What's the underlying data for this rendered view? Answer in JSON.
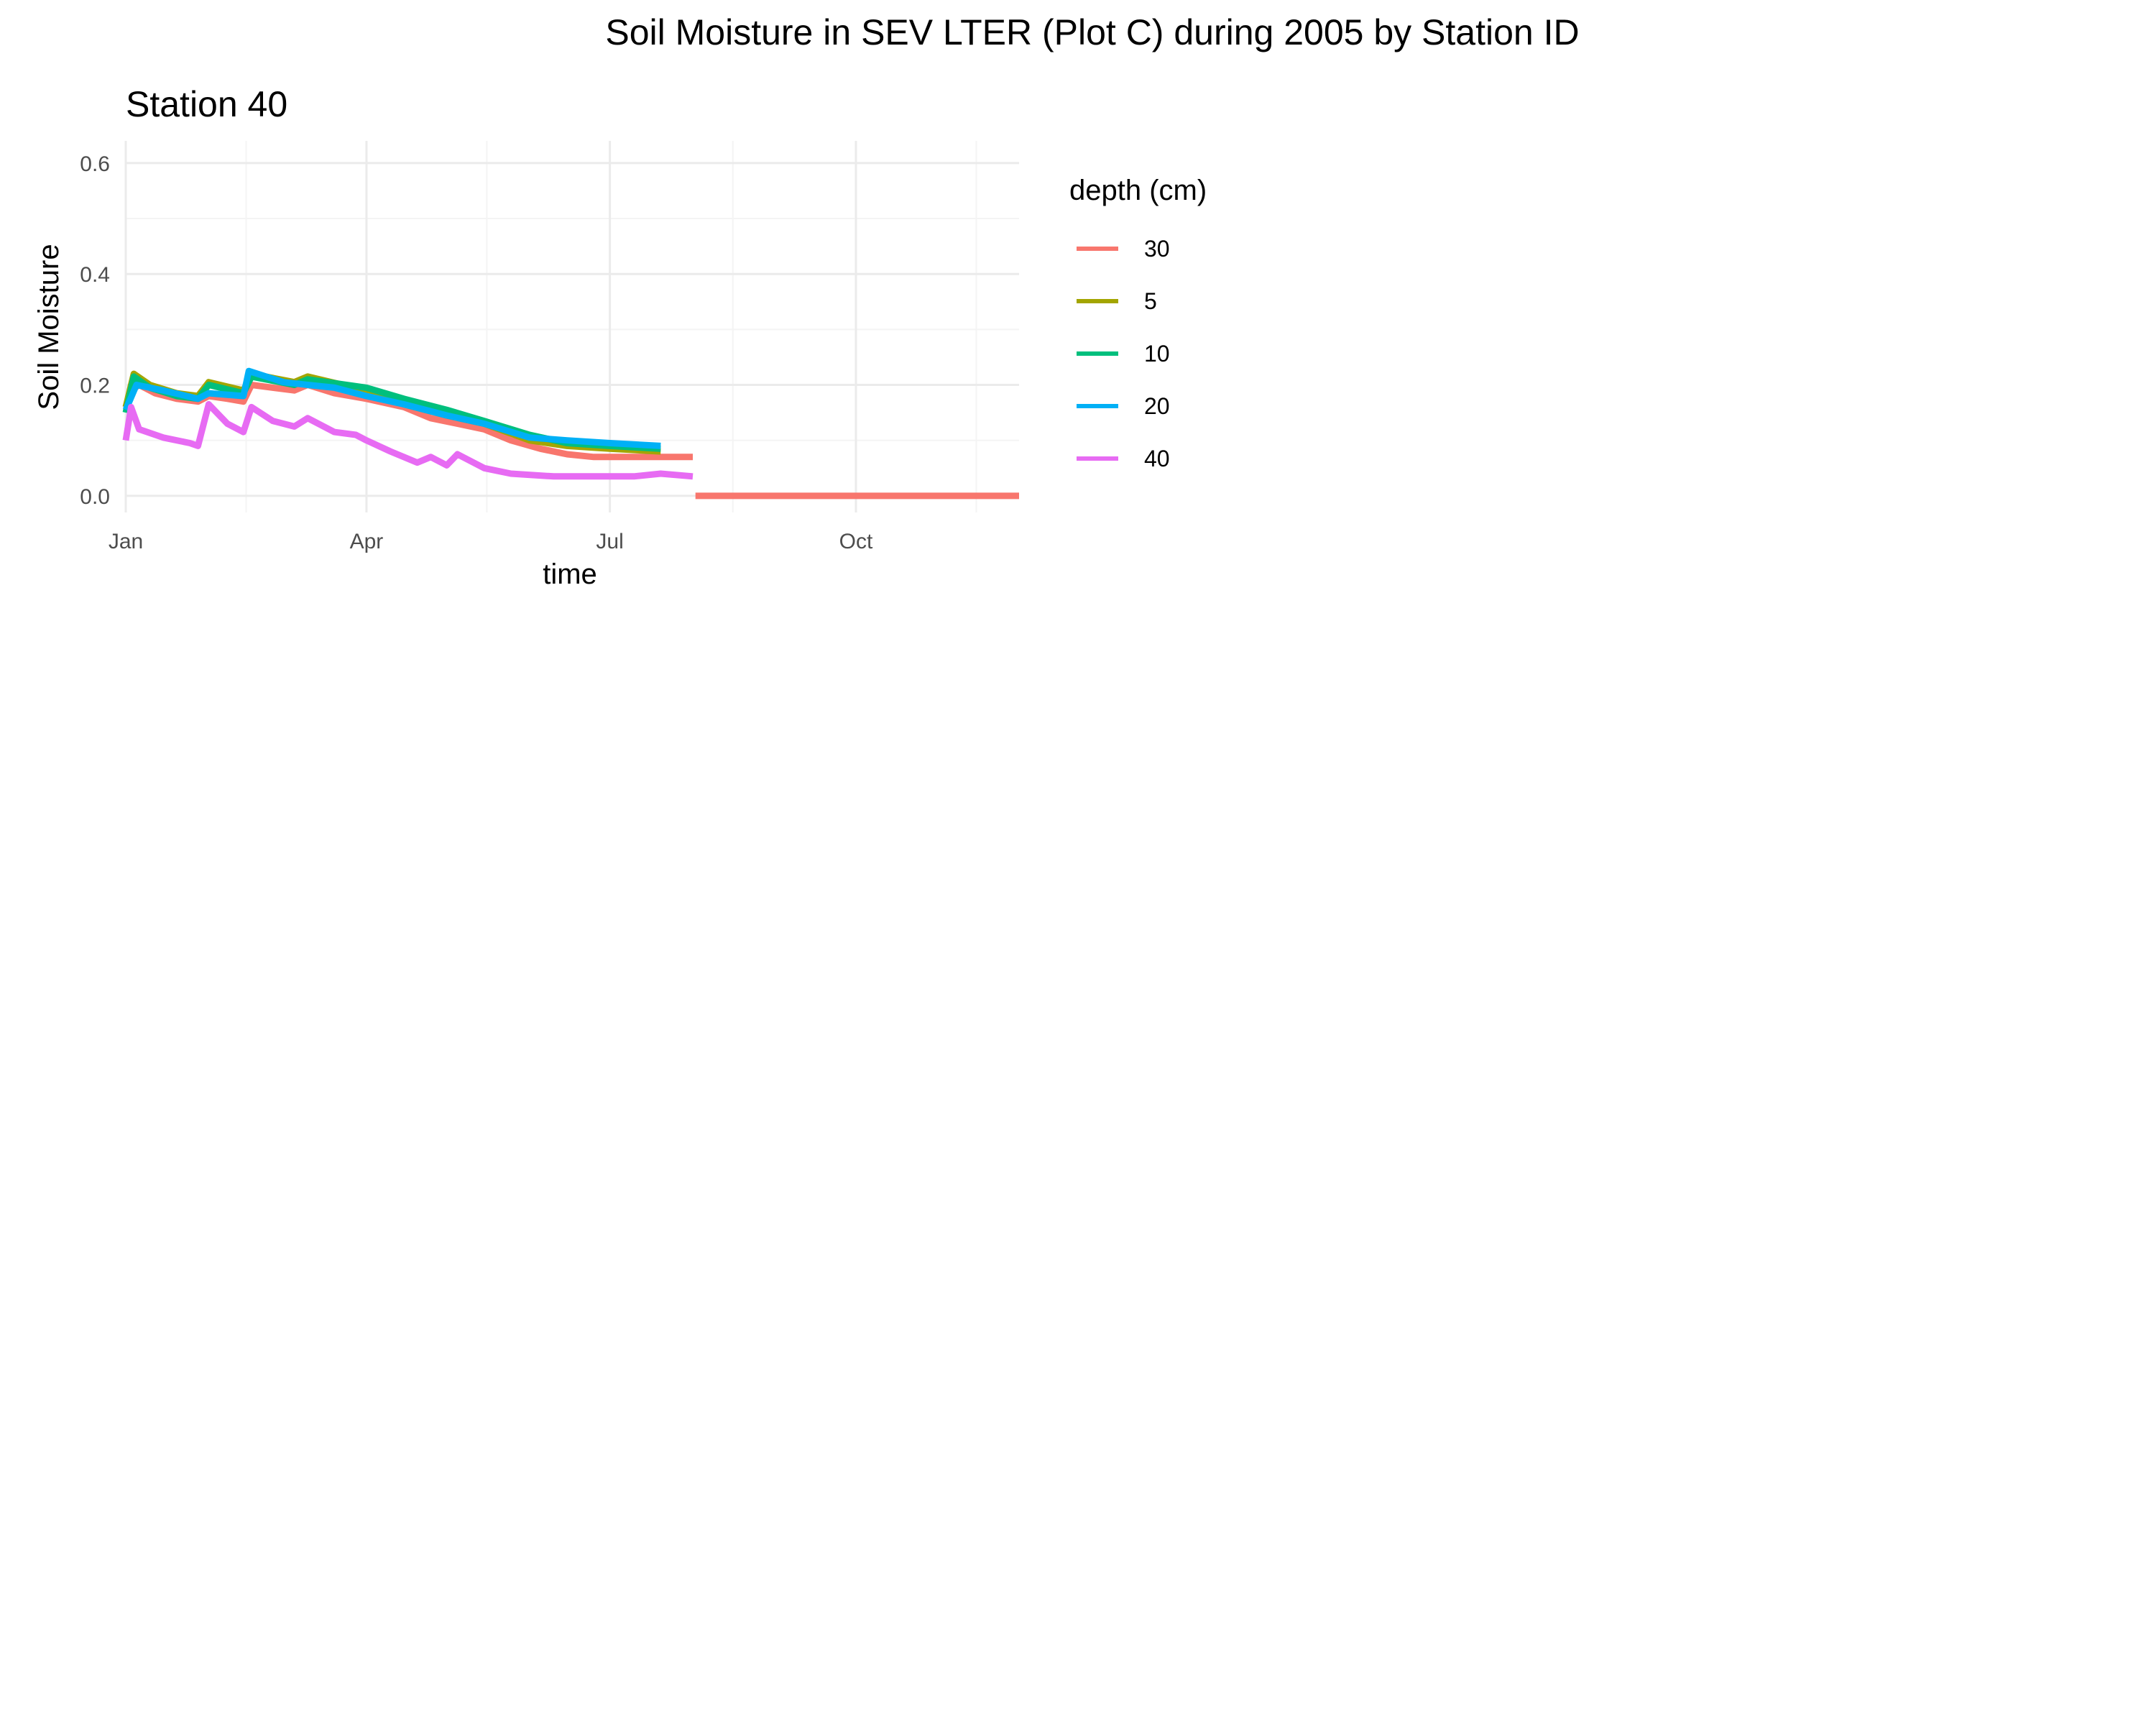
{
  "chart_data": {
    "type": "line",
    "title": "Soil Moisture in SEV LTER (Plot C) during 2005 by Station ID",
    "subtitle": "Station  40",
    "xlabel": "time",
    "ylabel": "Soil Moisture",
    "x_range": [
      "2005-01-01",
      "2005-12-01"
    ],
    "x_ticks": [
      {
        "date": "2005-01-01",
        "label": "Jan"
      },
      {
        "date": "2005-04-01",
        "label": "Apr"
      },
      {
        "date": "2005-07-01",
        "label": "Jul"
      },
      {
        "date": "2005-10-01",
        "label": "Oct"
      }
    ],
    "x_minor_ticks": [
      "2005-02-15",
      "2005-05-16",
      "2005-08-16",
      "2005-11-15"
    ],
    "ylim": [
      -0.03,
      0.64
    ],
    "y_ticks": [
      0.0,
      0.2,
      0.4,
      0.6
    ],
    "y_tick_labels": [
      "0.0",
      "0.2",
      "0.4",
      "0.6"
    ],
    "y_minor_ticks": [
      0.1,
      0.3,
      0.5
    ],
    "grid": true,
    "legend": {
      "title": "depth (cm)",
      "position": "right"
    },
    "series": [
      {
        "name": "30",
        "color": "#F8766D",
        "segments": [
          [
            [
              "2005-01-01",
              0.16
            ],
            [
              "2005-01-03",
              0.19
            ],
            [
              "2005-01-06",
              0.2
            ],
            [
              "2005-01-12",
              0.185
            ],
            [
              "2005-01-20",
              0.175
            ],
            [
              "2005-01-28",
              0.17
            ],
            [
              "2005-02-01",
              0.18
            ],
            [
              "2005-02-08",
              0.175
            ],
            [
              "2005-02-14",
              0.17
            ],
            [
              "2005-02-17",
              0.2
            ],
            [
              "2005-02-25",
              0.195
            ],
            [
              "2005-03-05",
              0.19
            ],
            [
              "2005-03-10",
              0.2
            ],
            [
              "2005-03-20",
              0.185
            ],
            [
              "2005-04-01",
              0.175
            ],
            [
              "2005-04-15",
              0.16
            ],
            [
              "2005-04-25",
              0.14
            ],
            [
              "2005-05-05",
              0.13
            ],
            [
              "2005-05-15",
              0.12
            ],
            [
              "2005-05-25",
              0.1
            ],
            [
              "2005-06-05",
              0.085
            ],
            [
              "2005-06-15",
              0.075
            ],
            [
              "2005-06-25",
              0.07
            ],
            [
              "2005-07-05",
              0.07
            ],
            [
              "2005-07-20",
              0.07
            ],
            [
              "2005-08-01",
              0.07
            ]
          ],
          [
            [
              "2005-08-02",
              0.0
            ],
            [
              "2005-12-01",
              0.0
            ]
          ]
        ]
      },
      {
        "name": "5",
        "color": "#A3A500",
        "segments": [
          [
            [
              "2005-01-01",
              0.16
            ],
            [
              "2005-01-04",
              0.22
            ],
            [
              "2005-01-10",
              0.2
            ],
            [
              "2005-01-20",
              0.185
            ],
            [
              "2005-01-28",
              0.18
            ],
            [
              "2005-02-01",
              0.205
            ],
            [
              "2005-02-14",
              0.19
            ],
            [
              "2005-02-17",
              0.22
            ],
            [
              "2005-03-05",
              0.205
            ],
            [
              "2005-03-10",
              0.215
            ],
            [
              "2005-04-01",
              0.19
            ],
            [
              "2005-04-15",
              0.165
            ],
            [
              "2005-05-01",
              0.145
            ],
            [
              "2005-05-15",
              0.13
            ],
            [
              "2005-06-01",
              0.1
            ],
            [
              "2005-06-15",
              0.09
            ],
            [
              "2005-07-01",
              0.085
            ],
            [
              "2005-07-20",
              0.08
            ]
          ]
        ]
      },
      {
        "name": "10",
        "color": "#00BF7D",
        "segments": [
          [
            [
              "2005-01-01",
              0.15
            ],
            [
              "2005-01-04",
              0.215
            ],
            [
              "2005-01-10",
              0.195
            ],
            [
              "2005-01-20",
              0.18
            ],
            [
              "2005-01-28",
              0.175
            ],
            [
              "2005-02-01",
              0.2
            ],
            [
              "2005-02-14",
              0.185
            ],
            [
              "2005-02-17",
              0.215
            ],
            [
              "2005-03-05",
              0.2
            ],
            [
              "2005-03-10",
              0.21
            ],
            [
              "2005-04-01",
              0.195
            ],
            [
              "2005-04-15",
              0.175
            ],
            [
              "2005-05-01",
              0.155
            ],
            [
              "2005-05-15",
              0.135
            ],
            [
              "2005-06-01",
              0.11
            ],
            [
              "2005-06-15",
              0.095
            ],
            [
              "2005-07-01",
              0.09
            ],
            [
              "2005-07-20",
              0.085
            ]
          ]
        ]
      },
      {
        "name": "20",
        "color": "#00B0F6",
        "segments": [
          [
            [
              "2005-01-01",
              0.155
            ],
            [
              "2005-01-05",
              0.2
            ],
            [
              "2005-01-15",
              0.19
            ],
            [
              "2005-01-28",
              0.175
            ],
            [
              "2005-02-01",
              0.185
            ],
            [
              "2005-02-14",
              0.18
            ],
            [
              "2005-02-16",
              0.225
            ],
            [
              "2005-03-01",
              0.205
            ],
            [
              "2005-03-10",
              0.2
            ],
            [
              "2005-03-20",
              0.195
            ],
            [
              "2005-04-01",
              0.18
            ],
            [
              "2005-04-15",
              0.165
            ],
            [
              "2005-05-01",
              0.145
            ],
            [
              "2005-05-15",
              0.13
            ],
            [
              "2005-06-01",
              0.105
            ],
            [
              "2005-06-15",
              0.1
            ],
            [
              "2005-07-01",
              0.095
            ],
            [
              "2005-07-20",
              0.09
            ]
          ]
        ]
      },
      {
        "name": "40",
        "color": "#E76BF3",
        "segments": [
          [
            [
              "2005-01-01",
              0.1
            ],
            [
              "2005-01-03",
              0.16
            ],
            [
              "2005-01-06",
              0.12
            ],
            [
              "2005-01-15",
              0.105
            ],
            [
              "2005-01-25",
              0.095
            ],
            [
              "2005-01-28",
              0.09
            ],
            [
              "2005-02-01",
              0.165
            ],
            [
              "2005-02-08",
              0.13
            ],
            [
              "2005-02-14",
              0.115
            ],
            [
              "2005-02-17",
              0.16
            ],
            [
              "2005-02-25",
              0.135
            ],
            [
              "2005-03-05",
              0.125
            ],
            [
              "2005-03-10",
              0.14
            ],
            [
              "2005-03-20",
              0.115
            ],
            [
              "2005-03-28",
              0.11
            ],
            [
              "2005-04-01",
              0.1
            ],
            [
              "2005-04-10",
              0.08
            ],
            [
              "2005-04-20",
              0.06
            ],
            [
              "2005-04-25",
              0.07
            ],
            [
              "2005-05-01",
              0.055
            ],
            [
              "2005-05-05",
              0.075
            ],
            [
              "2005-05-15",
              0.05
            ],
            [
              "2005-05-25",
              0.04
            ],
            [
              "2005-06-10",
              0.035
            ],
            [
              "2005-06-25",
              0.035
            ],
            [
              "2005-07-10",
              0.035
            ],
            [
              "2005-07-20",
              0.04
            ],
            [
              "2005-08-01",
              0.035
            ]
          ]
        ]
      }
    ]
  }
}
